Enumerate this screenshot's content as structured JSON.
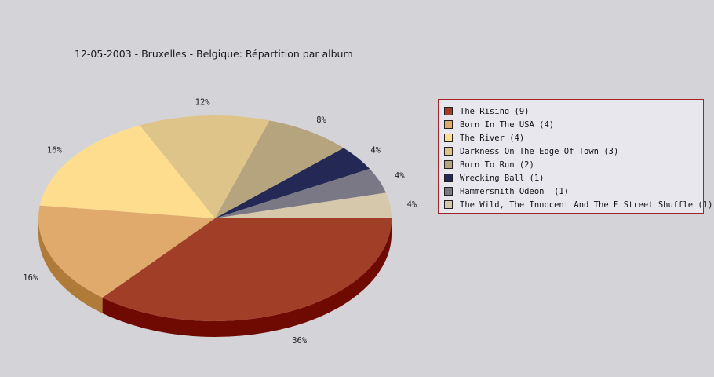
{
  "chart_data": {
    "type": "pie",
    "title": "12-05-2003 - Bruxelles - Belgique:  Répartition par album",
    "legend_position": "right",
    "slices": [
      {
        "label": "The Rising (9)",
        "value": 9,
        "percent_label": "36%",
        "color": "#a03e28",
        "side": "#6e0a02"
      },
      {
        "label": "Born In The USA (4)",
        "value": 4,
        "percent_label": "16%",
        "color": "#e0aa6c",
        "side": "#b07a38"
      },
      {
        "label": "The River (4)",
        "value": 4,
        "percent_label": "16%",
        "color": "#ffdd8e",
        "side": "#cfac5c"
      },
      {
        "label": "Darkness On The Edge Of Town (3)",
        "value": 3,
        "percent_label": "12%",
        "color": "#dec488",
        "side": "#ae9458"
      },
      {
        "label": "Born To Run (2)",
        "value": 2,
        "percent_label": "8%",
        "color": "#b6a47e",
        "side": "#86744e"
      },
      {
        "label": "Wrecking Ball (1)",
        "value": 1,
        "percent_label": "4%",
        "color": "#232854",
        "side": "#0a0d30"
      },
      {
        "label": "Hammersmith Odeon  (1)",
        "value": 1,
        "percent_label": "4%",
        "color": "#7a7884",
        "side": "#4a4854"
      },
      {
        "label": "The Wild, The Innocent And The E Street Shuffle (1)",
        "value": 1,
        "percent_label": "4%",
        "color": "#d6c8aa",
        "side": "#a6987a"
      }
    ]
  }
}
